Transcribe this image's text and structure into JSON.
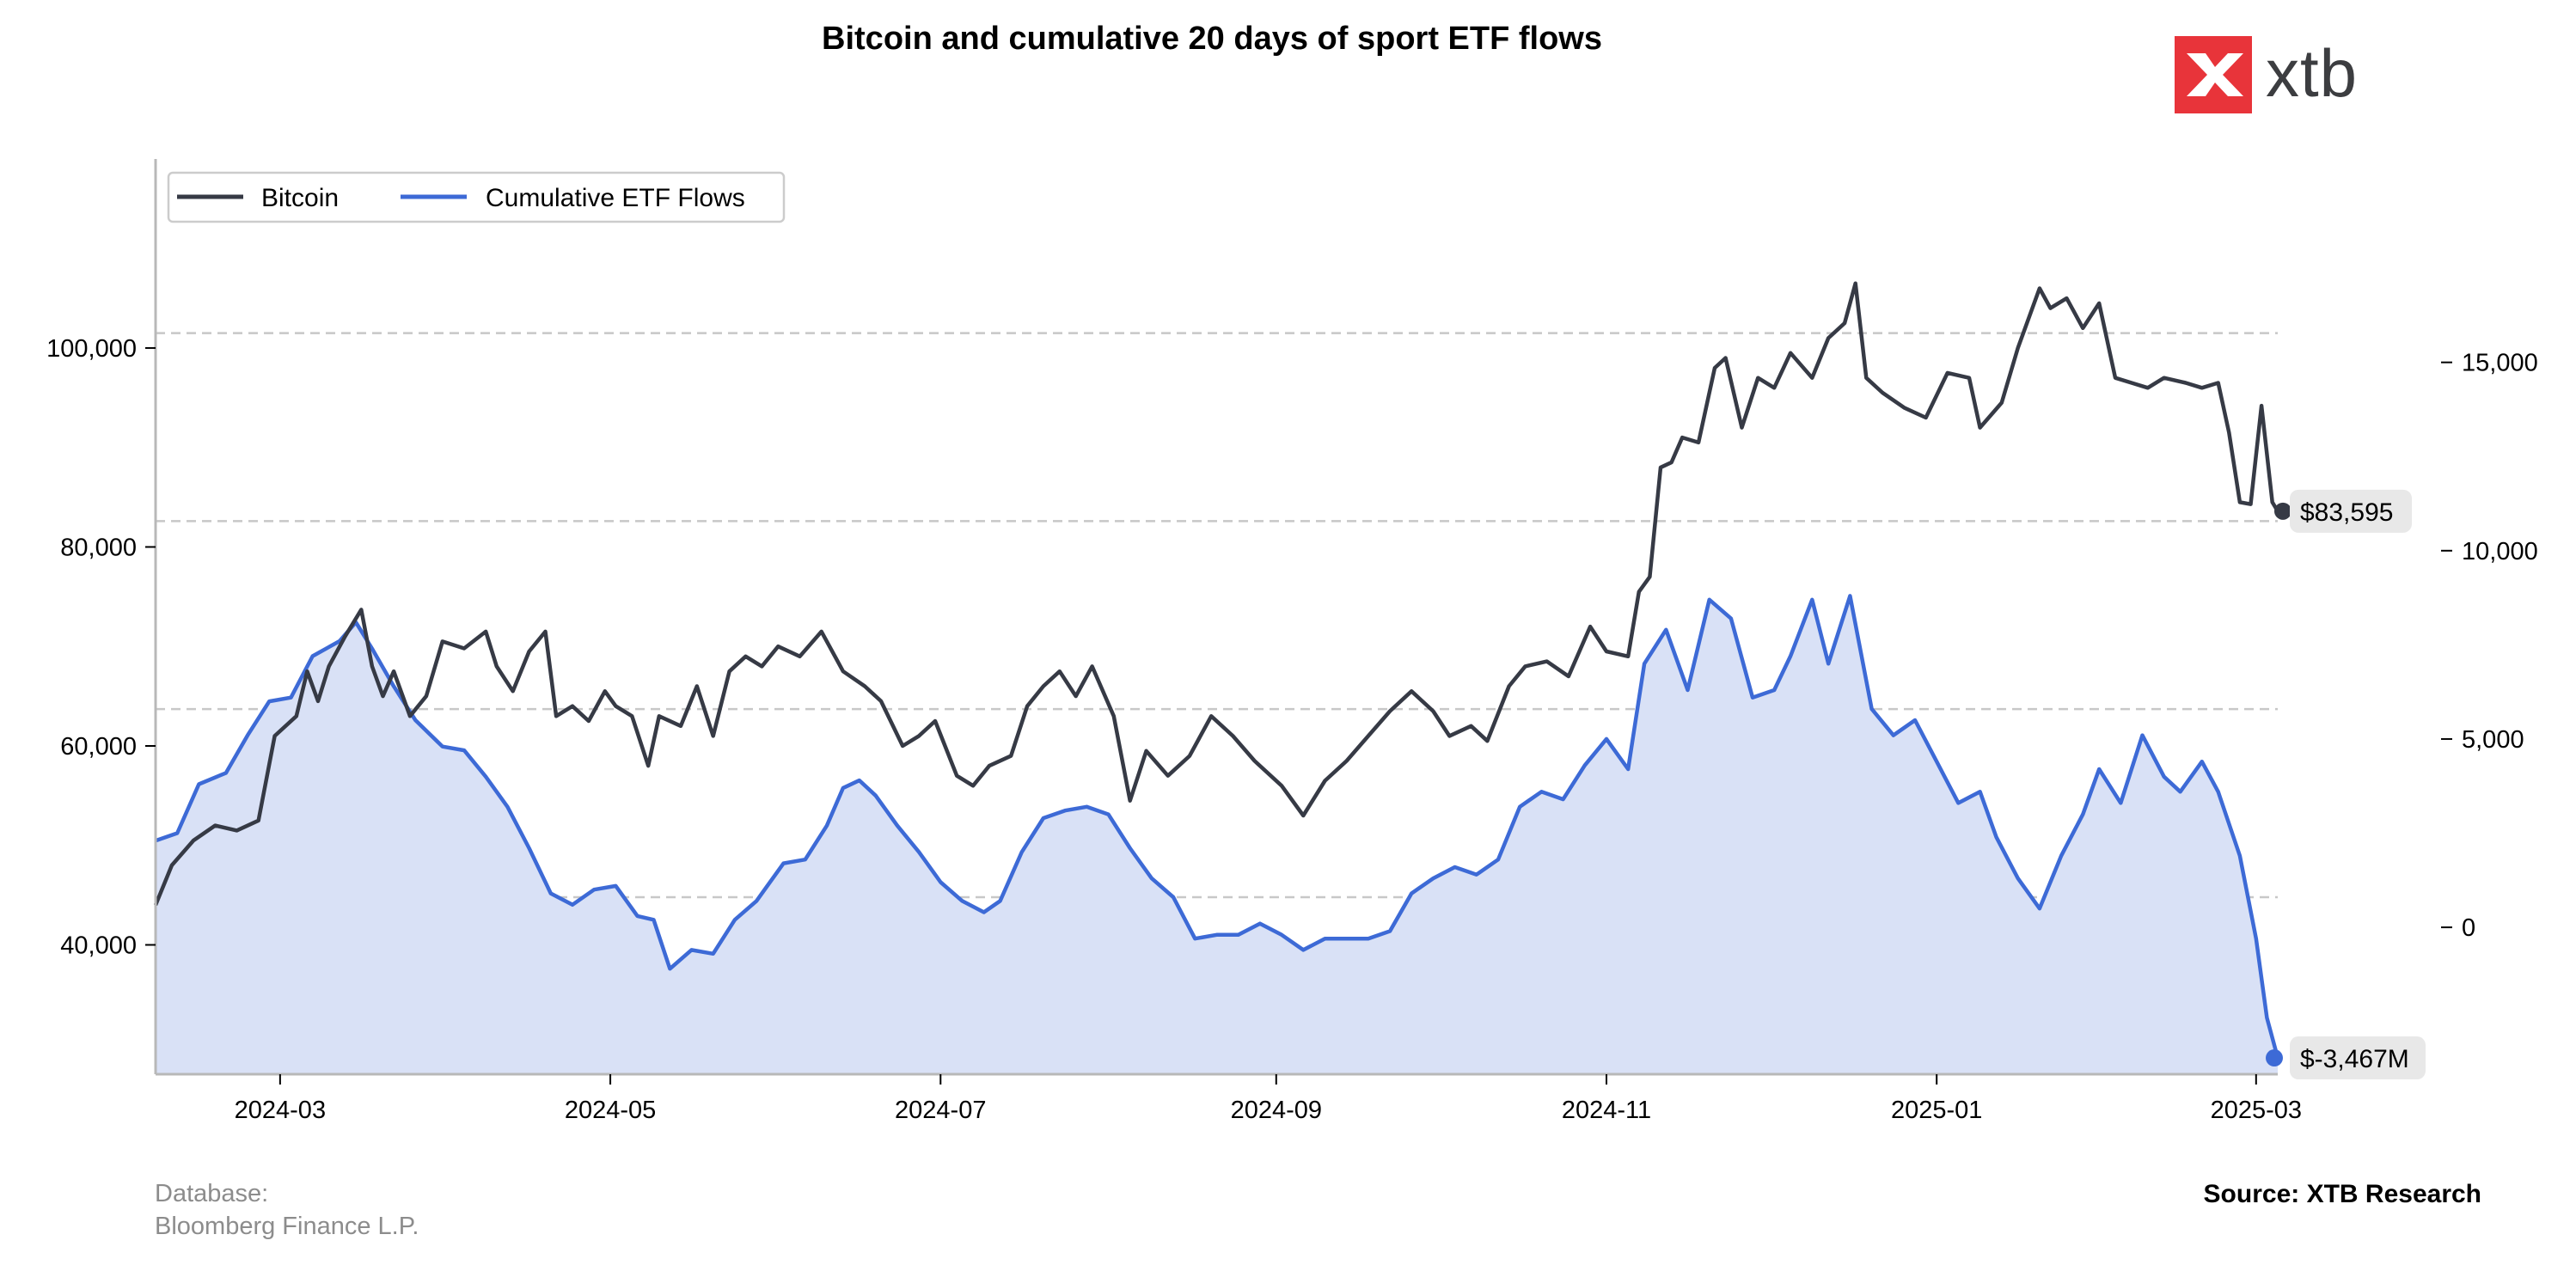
{
  "page": {
    "footer_database_line1": "Database:",
    "footer_database_line2": "Bloomberg Finance L.P.",
    "footer_source": "Source: XTB Research",
    "logo_text": "xtb",
    "logo_icon": "x-brand-icon"
  },
  "chart_data": {
    "type": "line",
    "title": "Bitcoin and cumulative 20 days of sport ETF flows",
    "xlabel": "",
    "ylabel_left": "",
    "ylabel_right": "",
    "x_range": [
      "2024-02-07",
      "2025-03-05"
    ],
    "x_ticks": [
      "2024-03",
      "2024-05",
      "2024-07",
      "2024-09",
      "2024-11",
      "2025-01",
      "2025-03"
    ],
    "left_axis": {
      "ylim": [
        27000,
        119000
      ],
      "ticks": [
        40000,
        60000,
        80000,
        100000
      ],
      "tick_labels": [
        "40,000",
        "60,000",
        "80,000",
        "100,000"
      ]
    },
    "right_axis": {
      "ylim": [
        -3900,
        20400
      ],
      "ticks": [
        0,
        5000,
        10000,
        15000
      ],
      "tick_labels": [
        "0",
        "5,000",
        "10,000",
        "15,000"
      ]
    },
    "grid": {
      "horizontal_dashed": true,
      "lines_left_axis": [
        44800,
        63700,
        82600,
        101500
      ]
    },
    "legend": {
      "placement": "top-left",
      "entries": [
        "Bitcoin",
        "Cumulative ETF Flows"
      ]
    },
    "colors": {
      "bitcoin": "#363a45",
      "flows": "#3d6ad6",
      "flows_fill": "#d9e1f6",
      "grid": "#c8c8c8",
      "badge_bg": "#e8e8e8",
      "accent_red": "#e8343a"
    },
    "series": [
      {
        "name": "Bitcoin",
        "axis": "left",
        "points": [
          [
            "2024-02-07",
            44000
          ],
          [
            "2024-02-10",
            48000
          ],
          [
            "2024-02-14",
            50500
          ],
          [
            "2024-02-18",
            52000
          ],
          [
            "2024-02-22",
            51500
          ],
          [
            "2024-02-26",
            52500
          ],
          [
            "2024-02-29",
            61000
          ],
          [
            "2024-03-04",
            63000
          ],
          [
            "2024-03-06",
            67500
          ],
          [
            "2024-03-08",
            64500
          ],
          [
            "2024-03-10",
            68000
          ],
          [
            "2024-03-13",
            71000
          ],
          [
            "2024-03-16",
            73700
          ],
          [
            "2024-03-18",
            68000
          ],
          [
            "2024-03-20",
            65000
          ],
          [
            "2024-03-22",
            67500
          ],
          [
            "2024-03-25",
            63000
          ],
          [
            "2024-03-28",
            65000
          ],
          [
            "2024-03-31",
            70500
          ],
          [
            "2024-04-04",
            69800
          ],
          [
            "2024-04-08",
            71500
          ],
          [
            "2024-04-10",
            68000
          ],
          [
            "2024-04-13",
            65500
          ],
          [
            "2024-04-16",
            69500
          ],
          [
            "2024-04-19",
            71500
          ],
          [
            "2024-04-21",
            63000
          ],
          [
            "2024-04-24",
            64000
          ],
          [
            "2024-04-27",
            62500
          ],
          [
            "2024-04-30",
            65500
          ],
          [
            "2024-05-02",
            64000
          ],
          [
            "2024-05-05",
            63000
          ],
          [
            "2024-05-08",
            58000
          ],
          [
            "2024-05-10",
            63000
          ],
          [
            "2024-05-14",
            62000
          ],
          [
            "2024-05-17",
            66000
          ],
          [
            "2024-05-20",
            61000
          ],
          [
            "2024-05-23",
            67500
          ],
          [
            "2024-05-26",
            69000
          ],
          [
            "2024-05-29",
            68000
          ],
          [
            "2024-06-01",
            70000
          ],
          [
            "2024-06-05",
            69000
          ],
          [
            "2024-06-09",
            71500
          ],
          [
            "2024-06-13",
            67500
          ],
          [
            "2024-06-17",
            66000
          ],
          [
            "2024-06-20",
            64500
          ],
          [
            "2024-06-24",
            60000
          ],
          [
            "2024-06-27",
            61000
          ],
          [
            "2024-06-30",
            62500
          ],
          [
            "2024-07-04",
            57000
          ],
          [
            "2024-07-07",
            56000
          ],
          [
            "2024-07-10",
            58000
          ],
          [
            "2024-07-14",
            59000
          ],
          [
            "2024-07-17",
            64000
          ],
          [
            "2024-07-20",
            66000
          ],
          [
            "2024-07-23",
            67500
          ],
          [
            "2024-07-26",
            65000
          ],
          [
            "2024-07-29",
            68000
          ],
          [
            "2024-08-02",
            63000
          ],
          [
            "2024-08-05",
            54500
          ],
          [
            "2024-08-08",
            59500
          ],
          [
            "2024-08-12",
            57000
          ],
          [
            "2024-08-16",
            59000
          ],
          [
            "2024-08-20",
            63000
          ],
          [
            "2024-08-24",
            61000
          ],
          [
            "2024-08-28",
            58500
          ],
          [
            "2024-09-02",
            56000
          ],
          [
            "2024-09-06",
            53000
          ],
          [
            "2024-09-10",
            56500
          ],
          [
            "2024-09-14",
            58500
          ],
          [
            "2024-09-18",
            61000
          ],
          [
            "2024-09-22",
            63500
          ],
          [
            "2024-09-26",
            65500
          ],
          [
            "2024-09-30",
            63500
          ],
          [
            "2024-10-03",
            61000
          ],
          [
            "2024-10-07",
            62000
          ],
          [
            "2024-10-10",
            60500
          ],
          [
            "2024-10-14",
            66000
          ],
          [
            "2024-10-17",
            68000
          ],
          [
            "2024-10-21",
            68500
          ],
          [
            "2024-10-25",
            67000
          ],
          [
            "2024-10-29",
            72000
          ],
          [
            "2024-11-01",
            69500
          ],
          [
            "2024-11-05",
            69000
          ],
          [
            "2024-11-07",
            75500
          ],
          [
            "2024-11-09",
            77000
          ],
          [
            "2024-11-11",
            88000
          ],
          [
            "2024-11-13",
            88500
          ],
          [
            "2024-11-15",
            91000
          ],
          [
            "2024-11-18",
            90500
          ],
          [
            "2024-11-21",
            98000
          ],
          [
            "2024-11-23",
            99000
          ],
          [
            "2024-11-26",
            92000
          ],
          [
            "2024-11-29",
            97000
          ],
          [
            "2024-12-02",
            96000
          ],
          [
            "2024-12-05",
            99500
          ],
          [
            "2024-12-09",
            97000
          ],
          [
            "2024-12-12",
            101000
          ],
          [
            "2024-12-15",
            102500
          ],
          [
            "2024-12-17",
            106500
          ],
          [
            "2024-12-19",
            97000
          ],
          [
            "2024-12-22",
            95500
          ],
          [
            "2024-12-26",
            94000
          ],
          [
            "2024-12-30",
            93000
          ],
          [
            "2025-01-03",
            97500
          ],
          [
            "2025-01-07",
            97000
          ],
          [
            "2025-01-09",
            92000
          ],
          [
            "2025-01-13",
            94500
          ],
          [
            "2025-01-16",
            100000
          ],
          [
            "2025-01-20",
            106000
          ],
          [
            "2025-01-22",
            104000
          ],
          [
            "2025-01-25",
            105000
          ],
          [
            "2025-01-28",
            102000
          ],
          [
            "2025-01-31",
            104500
          ],
          [
            "2025-02-03",
            97000
          ],
          [
            "2025-02-06",
            96500
          ],
          [
            "2025-02-09",
            96000
          ],
          [
            "2025-02-12",
            97000
          ],
          [
            "2025-02-16",
            96500
          ],
          [
            "2025-02-19",
            96000
          ],
          [
            "2025-02-22",
            96500
          ],
          [
            "2025-02-24",
            91500
          ],
          [
            "2025-02-26",
            84500
          ],
          [
            "2025-02-28",
            84300
          ],
          [
            "2025-03-02",
            94200
          ],
          [
            "2025-03-04",
            84500
          ],
          [
            "2025-03-05",
            83595
          ]
        ]
      },
      {
        "name": "Cumulative ETF Flows",
        "axis": "right",
        "points": [
          [
            "2024-02-07",
            2300
          ],
          [
            "2024-02-11",
            2500
          ],
          [
            "2024-02-15",
            3800
          ],
          [
            "2024-02-20",
            4100
          ],
          [
            "2024-02-24",
            5100
          ],
          [
            "2024-02-28",
            6000
          ],
          [
            "2024-03-03",
            6100
          ],
          [
            "2024-03-07",
            7200
          ],
          [
            "2024-03-12",
            7600
          ],
          [
            "2024-03-15",
            8100
          ],
          [
            "2024-03-18",
            7400
          ],
          [
            "2024-03-22",
            6400
          ],
          [
            "2024-03-26",
            5500
          ],
          [
            "2024-03-31",
            4800
          ],
          [
            "2024-04-04",
            4700
          ],
          [
            "2024-04-08",
            4000
          ],
          [
            "2024-04-12",
            3200
          ],
          [
            "2024-04-16",
            2100
          ],
          [
            "2024-04-20",
            900
          ],
          [
            "2024-04-24",
            600
          ],
          [
            "2024-04-28",
            1000
          ],
          [
            "2024-05-02",
            1100
          ],
          [
            "2024-05-06",
            300
          ],
          [
            "2024-05-09",
            200
          ],
          [
            "2024-05-12",
            -1100
          ],
          [
            "2024-05-16",
            -600
          ],
          [
            "2024-05-20",
            -700
          ],
          [
            "2024-05-24",
            200
          ],
          [
            "2024-05-28",
            700
          ],
          [
            "2024-06-02",
            1700
          ],
          [
            "2024-06-06",
            1800
          ],
          [
            "2024-06-10",
            2700
          ],
          [
            "2024-06-13",
            3700
          ],
          [
            "2024-06-16",
            3900
          ],
          [
            "2024-06-19",
            3500
          ],
          [
            "2024-06-23",
            2700
          ],
          [
            "2024-06-27",
            2000
          ],
          [
            "2024-07-01",
            1200
          ],
          [
            "2024-07-05",
            700
          ],
          [
            "2024-07-09",
            400
          ],
          [
            "2024-07-12",
            700
          ],
          [
            "2024-07-16",
            2000
          ],
          [
            "2024-07-20",
            2900
          ],
          [
            "2024-07-24",
            3100
          ],
          [
            "2024-07-28",
            3200
          ],
          [
            "2024-08-01",
            3000
          ],
          [
            "2024-08-05",
            2100
          ],
          [
            "2024-08-09",
            1300
          ],
          [
            "2024-08-13",
            800
          ],
          [
            "2024-08-17",
            -300
          ],
          [
            "2024-08-21",
            -200
          ],
          [
            "2024-08-25",
            -200
          ],
          [
            "2024-08-29",
            100
          ],
          [
            "2024-09-02",
            -200
          ],
          [
            "2024-09-06",
            -600
          ],
          [
            "2024-09-10",
            -300
          ],
          [
            "2024-09-14",
            -300
          ],
          [
            "2024-09-18",
            -300
          ],
          [
            "2024-09-22",
            -100
          ],
          [
            "2024-09-26",
            900
          ],
          [
            "2024-09-30",
            1300
          ],
          [
            "2024-10-04",
            1600
          ],
          [
            "2024-10-08",
            1400
          ],
          [
            "2024-10-12",
            1800
          ],
          [
            "2024-10-16",
            3200
          ],
          [
            "2024-10-20",
            3600
          ],
          [
            "2024-10-24",
            3400
          ],
          [
            "2024-10-28",
            4300
          ],
          [
            "2024-11-01",
            5000
          ],
          [
            "2024-11-05",
            4200
          ],
          [
            "2024-11-08",
            7000
          ],
          [
            "2024-11-12",
            7900
          ],
          [
            "2024-11-16",
            6300
          ],
          [
            "2024-11-20",
            8700
          ],
          [
            "2024-11-24",
            8200
          ],
          [
            "2024-11-28",
            6100
          ],
          [
            "2024-12-02",
            6300
          ],
          [
            "2024-12-05",
            7200
          ],
          [
            "2024-12-09",
            8700
          ],
          [
            "2024-12-12",
            7000
          ],
          [
            "2024-12-16",
            8800
          ],
          [
            "2024-12-20",
            5800
          ],
          [
            "2024-12-24",
            5100
          ],
          [
            "2024-12-28",
            5500
          ],
          [
            "2025-01-01",
            4400
          ],
          [
            "2025-01-05",
            3300
          ],
          [
            "2025-01-09",
            3600
          ],
          [
            "2025-01-12",
            2400
          ],
          [
            "2025-01-16",
            1300
          ],
          [
            "2025-01-20",
            500
          ],
          [
            "2025-01-24",
            1900
          ],
          [
            "2025-01-28",
            3000
          ],
          [
            "2025-01-31",
            4200
          ],
          [
            "2025-02-04",
            3300
          ],
          [
            "2025-02-08",
            5100
          ],
          [
            "2025-02-12",
            4000
          ],
          [
            "2025-02-15",
            3600
          ],
          [
            "2025-02-19",
            4400
          ],
          [
            "2025-02-22",
            3600
          ],
          [
            "2025-02-26",
            1900
          ],
          [
            "2025-03-01",
            -300
          ],
          [
            "2025-03-03",
            -2400
          ],
          [
            "2025-03-05",
            -3467
          ]
        ]
      }
    ],
    "end_labels": {
      "bitcoin": "$83,595",
      "flows": "$-3,467M"
    }
  }
}
